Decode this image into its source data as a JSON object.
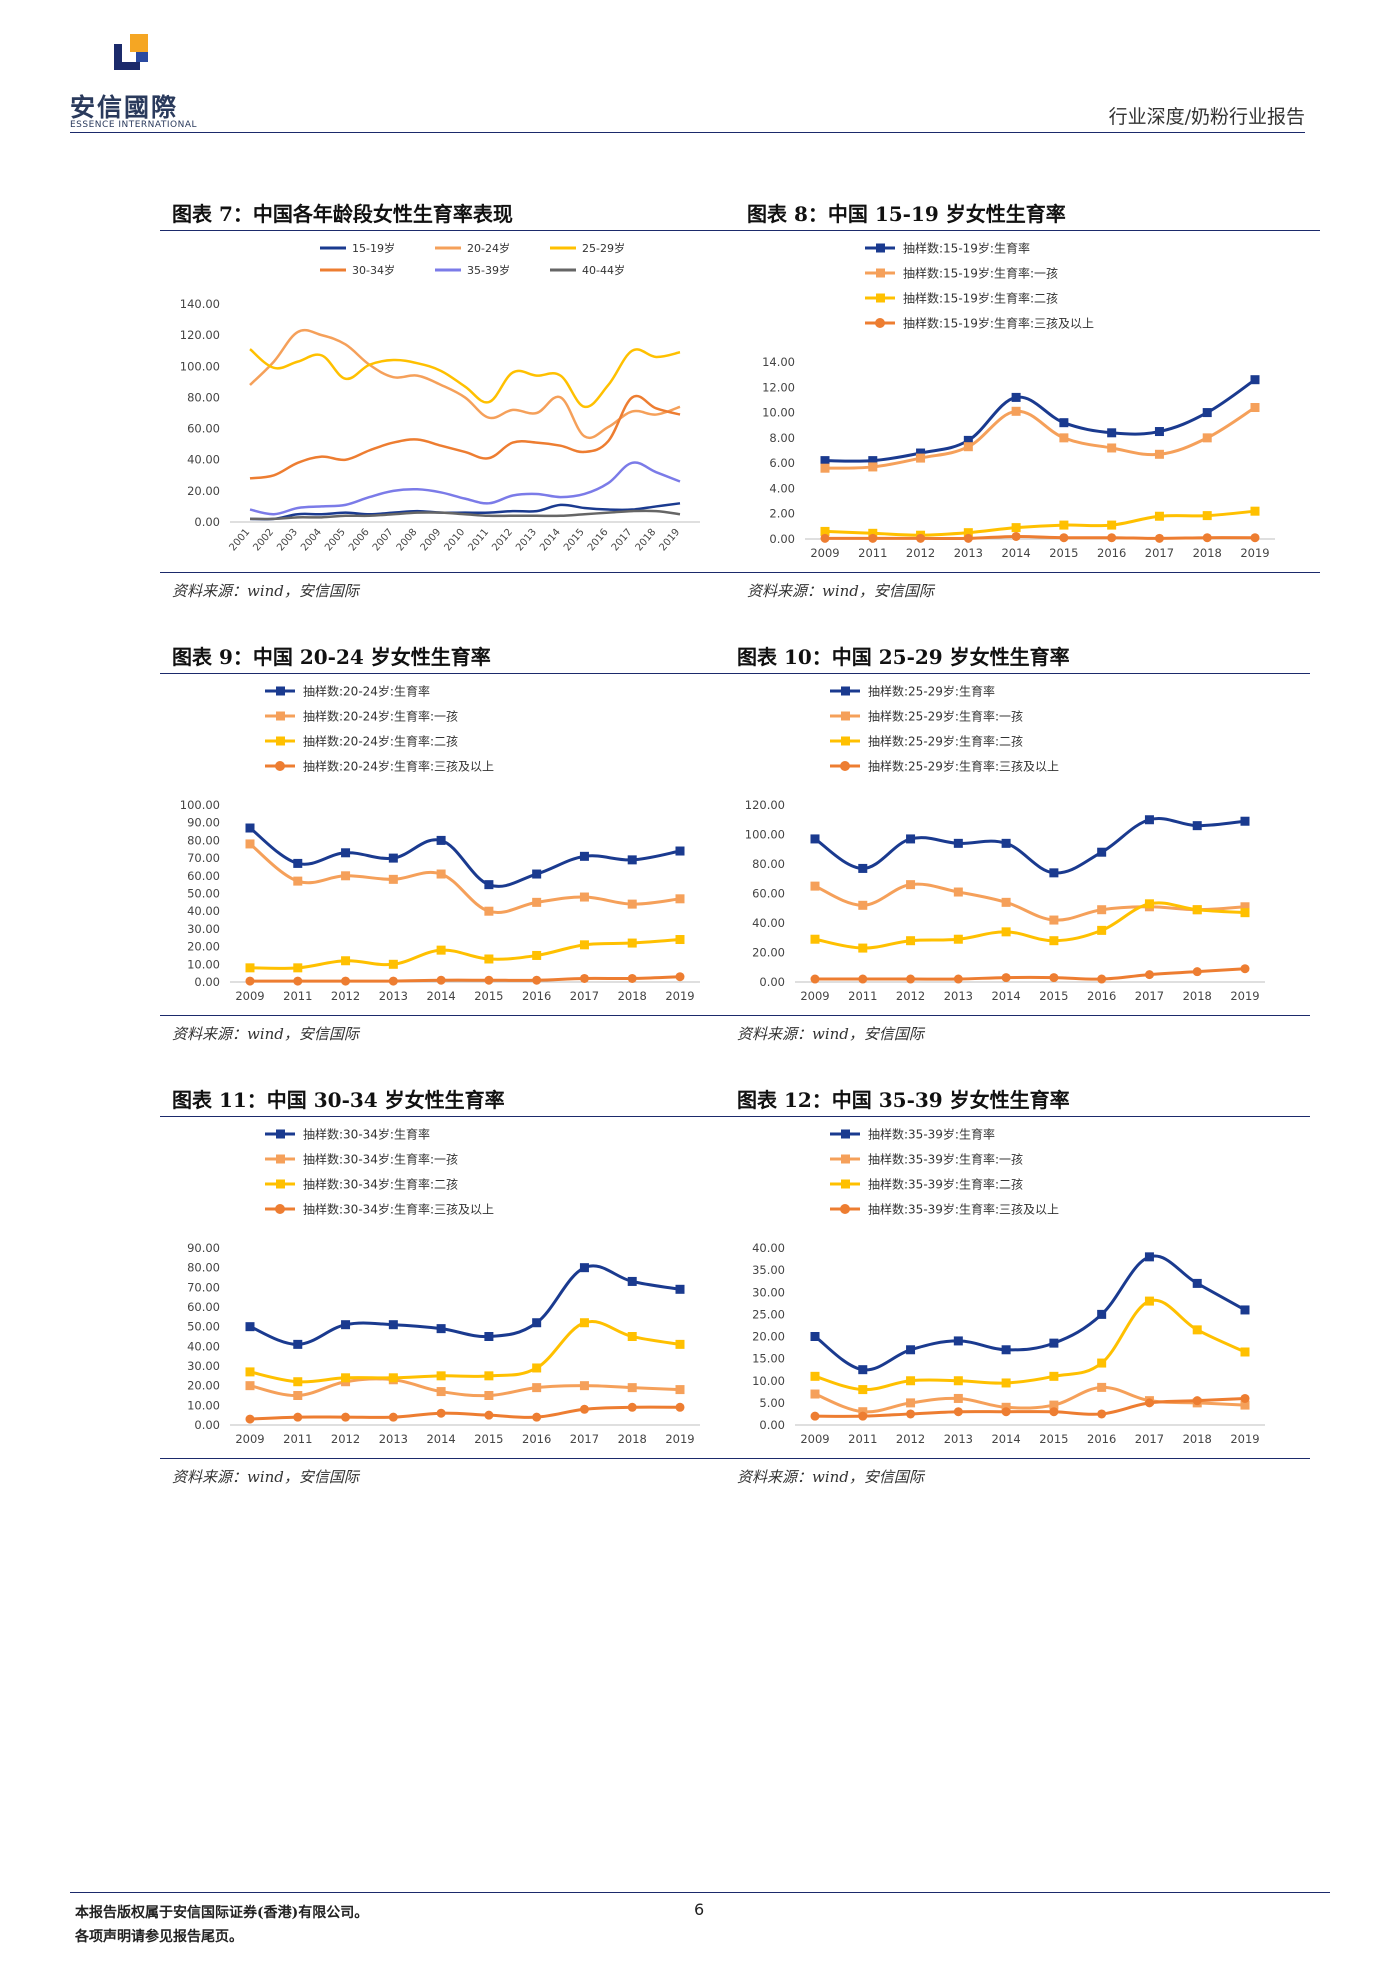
{
  "header": {
    "logo_text": "安信國際",
    "logo_sub": "ESSENCE INTERNATIONAL",
    "report_type": "行业深度/奶粉行业报告"
  },
  "footer": {
    "line1": "本报告版权属于安信国际证券(香港)有限公司。",
    "line2": "各项声明请参见报告尾页。",
    "page_number": "6"
  },
  "colors": {
    "navy": "#1a3a8f",
    "light_orange": "#f5a05a",
    "yellow": "#ffc000",
    "orange": "#ed7d31",
    "purple": "#7b7be8",
    "gray": "#666666"
  },
  "charts": [
    {
      "title": "图表 7：中国各年龄段女性生育率表现",
      "source": "资料来源：wind，安信国际",
      "chart_data": {
        "type": "line",
        "markers": false,
        "x": [
          "2001",
          "2002",
          "2003",
          "2004",
          "2005",
          "2006",
          "2007",
          "2008",
          "2009",
          "2010",
          "2011",
          "2012",
          "2013",
          "2014",
          "2015",
          "2016",
          "2017",
          "2018",
          "2019"
        ],
        "xlabel": "",
        "ylabel": "",
        "ylim": [
          0,
          140
        ],
        "yticks": [
          "0.00",
          "20.00",
          "40.00",
          "60.00",
          "80.00",
          "100.00",
          "120.00",
          "140.00"
        ],
        "rotate_x_labels": true,
        "legend_position": "top",
        "series": [
          {
            "name": "15-19岁",
            "color": "#1a3a8f",
            "values": [
              2,
              2,
              5,
              5,
              6,
              5,
              6,
              7,
              6,
              6,
              6,
              7,
              7,
              11,
              9,
              8,
              8,
              10,
              12
            ]
          },
          {
            "name": "20-24岁",
            "color": "#f5a05a",
            "values": [
              88,
              103,
              122,
              120,
              114,
              101,
              93,
              94,
              88,
              80,
              67,
              72,
              70,
              80,
              55,
              61,
              71,
              69,
              74
            ]
          },
          {
            "name": "25-29岁",
            "color": "#ffc000",
            "values": [
              111,
              99,
              103,
              107,
              92,
              101,
              104,
              102,
              97,
              87,
              77,
              96,
              94,
              94,
              74,
              88,
              110,
              106,
              109
            ]
          },
          {
            "name": "30-34岁",
            "color": "#ed7d31",
            "values": [
              28,
              30,
              38,
              42,
              40,
              46,
              51,
              53,
              49,
              45,
              41,
              51,
              51,
              49,
              45,
              52,
              80,
              73,
              69
            ]
          },
          {
            "name": "35-39岁",
            "color": "#7b7be8",
            "values": [
              8,
              5,
              9,
              10,
              11,
              16,
              20,
              21,
              19,
              15,
              12,
              17,
              18,
              16,
              18,
              25,
              38,
              32,
              26
            ]
          },
          {
            "name": "40-44岁",
            "color": "#666666",
            "values": [
              2,
              2,
              3,
              3,
              4,
              4,
              5,
              6,
              6,
              5,
              4,
              4,
              4,
              4,
              5,
              6,
              7,
              7,
              5
            ]
          }
        ]
      }
    },
    {
      "title": "图表 8：中国 15-19 岁女性生育率",
      "source": "资料来源：wind，安信国际",
      "chart_data": {
        "type": "line",
        "markers": true,
        "x": [
          "2009",
          "2011",
          "2012",
          "2013",
          "2014",
          "2015",
          "2016",
          "2017",
          "2018",
          "2019"
        ],
        "xlabel": "",
        "ylabel": "",
        "ylim": [
          0,
          14
        ],
        "yticks": [
          "0.00",
          "2.00",
          "4.00",
          "6.00",
          "8.00",
          "10.00",
          "12.00",
          "14.00"
        ],
        "legend_position": "top",
        "series": [
          {
            "name": "抽样数:15-19岁:生育率",
            "color": "#1a3a8f",
            "values": [
              6.2,
              6.2,
              6.8,
              7.8,
              11.2,
              9.2,
              8.4,
              8.5,
              10.0,
              12.6
            ]
          },
          {
            "name": "抽样数:15-19岁:生育率:一孩",
            "color": "#f5a05a",
            "values": [
              5.6,
              5.7,
              6.4,
              7.3,
              10.1,
              8.0,
              7.2,
              6.7,
              8.0,
              10.4
            ]
          },
          {
            "name": "抽样数:15-19岁:生育率:二孩",
            "color": "#ffc000",
            "values": [
              0.6,
              0.45,
              0.3,
              0.5,
              0.9,
              1.1,
              1.1,
              1.8,
              1.85,
              2.2
            ]
          },
          {
            "name": "抽样数:15-19岁:生育率:三孩及以上",
            "color": "#ed7d31",
            "values": [
              0.05,
              0.05,
              0.05,
              0.05,
              0.2,
              0.1,
              0.1,
              0.05,
              0.1,
              0.1
            ]
          }
        ]
      }
    },
    {
      "title": "图表 9：中国 20-24 岁女性生育率",
      "source": "资料来源：wind，安信国际",
      "chart_data": {
        "type": "line",
        "markers": true,
        "x": [
          "2009",
          "2011",
          "2012",
          "2013",
          "2014",
          "2015",
          "2016",
          "2017",
          "2018",
          "2019"
        ],
        "xlabel": "",
        "ylabel": "",
        "ylim": [
          0,
          100
        ],
        "yticks": [
          "0.00",
          "10.00",
          "20.00",
          "30.00",
          "40.00",
          "50.00",
          "60.00",
          "70.00",
          "80.00",
          "90.00",
          "100.00"
        ],
        "legend_position": "top",
        "series": [
          {
            "name": "抽样数:20-24岁:生育率",
            "color": "#1a3a8f",
            "values": [
              87,
              67,
              73,
              70,
              80,
              55,
              61,
              71,
              69,
              74
            ]
          },
          {
            "name": "抽样数:20-24岁:生育率:一孩",
            "color": "#f5a05a",
            "values": [
              78,
              57,
              60,
              58,
              61,
              40,
              45,
              48,
              44,
              47
            ]
          },
          {
            "name": "抽样数:20-24岁:生育率:二孩",
            "color": "#ffc000",
            "values": [
              8,
              8,
              12,
              10,
              18,
              13,
              15,
              21,
              22,
              24
            ]
          },
          {
            "name": "抽样数:20-24岁:生育率:三孩及以上",
            "color": "#ed7d31",
            "values": [
              0.5,
              0.5,
              0.5,
              0.5,
              1,
              1,
              1,
              2,
              2,
              3
            ]
          }
        ]
      }
    },
    {
      "title": "图表 10：中国 25-29 岁女性生育率",
      "source": "资料来源：wind，安信国际",
      "chart_data": {
        "type": "line",
        "markers": true,
        "x": [
          "2009",
          "2011",
          "2012",
          "2013",
          "2014",
          "2015",
          "2016",
          "2017",
          "2018",
          "2019"
        ],
        "xlabel": "",
        "ylabel": "",
        "ylim": [
          0,
          120
        ],
        "yticks": [
          "0.00",
          "20.00",
          "40.00",
          "60.00",
          "80.00",
          "100.00",
          "120.00"
        ],
        "legend_position": "top",
        "series": [
          {
            "name": "抽样数:25-29岁:生育率",
            "color": "#1a3a8f",
            "values": [
              97,
              77,
              97,
              94,
              94,
              74,
              88,
              110,
              106,
              109
            ]
          },
          {
            "name": "抽样数:25-29岁:生育率:一孩",
            "color": "#f5a05a",
            "values": [
              65,
              52,
              66,
              61,
              54,
              42,
              49,
              51,
              49,
              51
            ]
          },
          {
            "name": "抽样数:25-29岁:生育率:二孩",
            "color": "#ffc000",
            "values": [
              29,
              23,
              28,
              29,
              34,
              28,
              35,
              53,
              49,
              47
            ]
          },
          {
            "name": "抽样数:25-29岁:生育率:三孩及以上",
            "color": "#ed7d31",
            "values": [
              2,
              2,
              2,
              2,
              3,
              3,
              2,
              5,
              7,
              9
            ]
          }
        ]
      }
    },
    {
      "title": "图表 11：中国 30-34 岁女性生育率",
      "source": "资料来源：wind，安信国际",
      "chart_data": {
        "type": "line",
        "markers": true,
        "x": [
          "2009",
          "2011",
          "2012",
          "2013",
          "2014",
          "2015",
          "2016",
          "2017",
          "2018",
          "2019"
        ],
        "xlabel": "",
        "ylabel": "",
        "ylim": [
          0,
          90
        ],
        "yticks": [
          "0.00",
          "10.00",
          "20.00",
          "30.00",
          "40.00",
          "50.00",
          "60.00",
          "70.00",
          "80.00",
          "90.00"
        ],
        "legend_position": "top",
        "series": [
          {
            "name": "抽样数:30-34岁:生育率",
            "color": "#1a3a8f",
            "values": [
              50,
              41,
              51,
              51,
              49,
              45,
              52,
              80,
              73,
              69
            ]
          },
          {
            "name": "抽样数:30-34岁:生育率:一孩",
            "color": "#f5a05a",
            "values": [
              20,
              15,
              22,
              23,
              17,
              15,
              19,
              20,
              19,
              18
            ]
          },
          {
            "name": "抽样数:30-34岁:生育率:二孩",
            "color": "#ffc000",
            "values": [
              27,
              22,
              24,
              24,
              25,
              25,
              29,
              52,
              45,
              41
            ]
          },
          {
            "name": "抽样数:30-34岁:生育率:三孩及以上",
            "color": "#ed7d31",
            "values": [
              3,
              4,
              4,
              4,
              6,
              5,
              4,
              8,
              9,
              9
            ]
          }
        ]
      }
    },
    {
      "title": "图表 12：中国 35-39 岁女性生育率",
      "source": "资料来源：wind，安信国际",
      "chart_data": {
        "type": "line",
        "markers": true,
        "x": [
          "2009",
          "2011",
          "2012",
          "2013",
          "2014",
          "2015",
          "2016",
          "2017",
          "2018",
          "2019"
        ],
        "xlabel": "",
        "ylabel": "",
        "ylim": [
          0,
          40
        ],
        "yticks": [
          "0.00",
          "5.00",
          "10.00",
          "15.00",
          "20.00",
          "25.00",
          "30.00",
          "35.00",
          "40.00"
        ],
        "legend_position": "top",
        "series": [
          {
            "name": "抽样数:35-39岁:生育率",
            "color": "#1a3a8f",
            "values": [
              20,
              12.5,
              17,
              19,
              17,
              18.5,
              25,
              38,
              32,
              26
            ]
          },
          {
            "name": "抽样数:35-39岁:生育率:一孩",
            "color": "#f5a05a",
            "values": [
              7,
              3,
              5,
              6,
              4,
              4.5,
              8.5,
              5.5,
              5,
              4.5
            ]
          },
          {
            "name": "抽样数:35-39岁:生育率:二孩",
            "color": "#ffc000",
            "values": [
              11,
              8,
              10,
              10,
              9.5,
              11,
              14,
              28,
              21.5,
              16.5
            ]
          },
          {
            "name": "抽样数:35-39岁:生育率:三孩及以上",
            "color": "#ed7d31",
            "values": [
              2,
              2,
              2.5,
              3,
              3,
              3,
              2.5,
              5,
              5.5,
              6
            ]
          }
        ]
      }
    }
  ]
}
